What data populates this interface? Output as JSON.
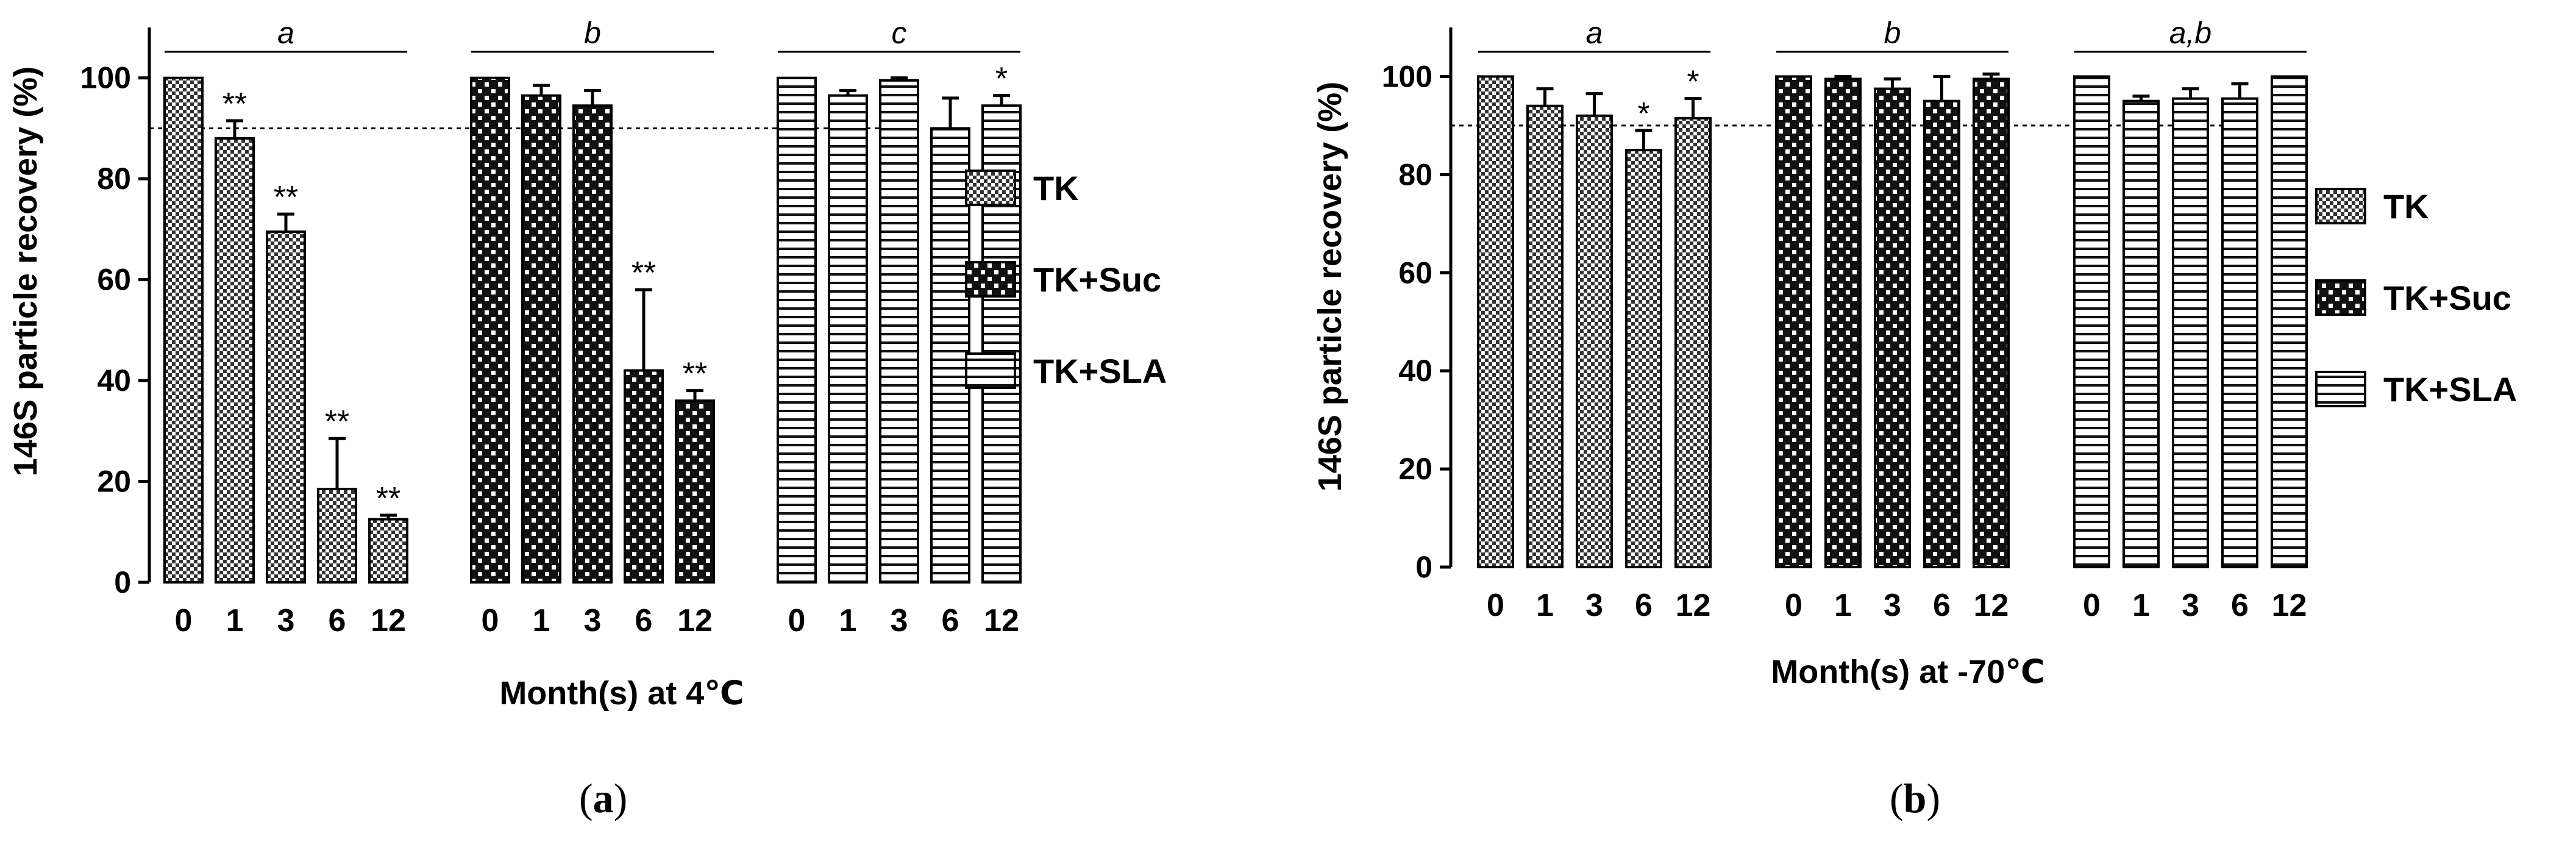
{
  "panels": [
    {
      "id": "a",
      "caption_label": "a",
      "ylabel": "146S particle recovery (%)",
      "xlabel": "Month(s) at 4℃",
      "ylim": [
        0,
        110
      ],
      "yticks": [
        "0",
        "20",
        "40",
        "60",
        "80",
        "100"
      ],
      "reference_line": 90,
      "group_letters": [
        "a",
        "b",
        "c"
      ],
      "legend": [
        "TK",
        "TK+Suc",
        "TK+SLA"
      ]
    },
    {
      "id": "b",
      "caption_label": "b",
      "ylabel": "146S particle recovery (%)",
      "xlabel": "Month(s) at -70℃",
      "ylim": [
        0,
        110
      ],
      "yticks": [
        "0",
        "20",
        "40",
        "60",
        "80",
        "100"
      ],
      "reference_line": 90,
      "group_letters": [
        "a",
        "b",
        "a,b"
      ],
      "legend": [
        "TK",
        "TK+Suc",
        "TK+SLA"
      ]
    }
  ],
  "chart_data": [
    {
      "type": "bar",
      "title": "(a)",
      "xlabel": "Month(s) at 4℃",
      "ylabel": "146S particle recovery (%)",
      "ylim": [
        0,
        110
      ],
      "categories": [
        "0",
        "1",
        "3",
        "6",
        "12"
      ],
      "series": [
        {
          "name": "TK",
          "pattern": "checker",
          "values": [
            100,
            88,
            69.5,
            18.5,
            12.5
          ],
          "errors": [
            0,
            3.5,
            3.5,
            10,
            0.8
          ],
          "significance": [
            "",
            "**",
            "**",
            "**",
            "**"
          ]
        },
        {
          "name": "TK+Suc",
          "pattern": "grid",
          "values": [
            100,
            96.5,
            94.5,
            42,
            36
          ],
          "errors": [
            0,
            2,
            3,
            16,
            2
          ],
          "significance": [
            "",
            "",
            "",
            "**",
            "**"
          ]
        },
        {
          "name": "TK+SLA",
          "pattern": "horizontal",
          "values": [
            100,
            96.5,
            99.5,
            90,
            94.5
          ],
          "errors": [
            0,
            1,
            0.5,
            6,
            2
          ],
          "significance": [
            "",
            "",
            "",
            "",
            "*"
          ]
        }
      ],
      "reference_line": 90,
      "group_letters": [
        "a",
        "b",
        "c"
      ]
    },
    {
      "type": "bar",
      "title": "(b)",
      "xlabel": "Month(s) at -70℃",
      "ylabel": "146S particle recovery (%)",
      "ylim": [
        0,
        110
      ],
      "categories": [
        "0",
        "1",
        "3",
        "6",
        "12"
      ],
      "series": [
        {
          "name": "TK",
          "pattern": "checker",
          "values": [
            100,
            94,
            92,
            85,
            91.5
          ],
          "errors": [
            0,
            3.5,
            4.5,
            4,
            4
          ],
          "significance": [
            "",
            "",
            "",
            "*",
            "*"
          ]
        },
        {
          "name": "TK+Suc",
          "pattern": "grid",
          "values": [
            100,
            99.5,
            97.5,
            95,
            99.5
          ],
          "errors": [
            0,
            0.5,
            2,
            5,
            1
          ],
          "significance": [
            "",
            "",
            "",
            "",
            ""
          ]
        },
        {
          "name": "TK+SLA",
          "pattern": "horizontal",
          "values": [
            100,
            95,
            95.5,
            95.5,
            100
          ],
          "errors": [
            0,
            1,
            2,
            3,
            0
          ],
          "significance": [
            "",
            "",
            "",
            "",
            ""
          ]
        }
      ],
      "reference_line": 90,
      "group_letters": [
        "a",
        "b",
        "a,b"
      ]
    }
  ]
}
